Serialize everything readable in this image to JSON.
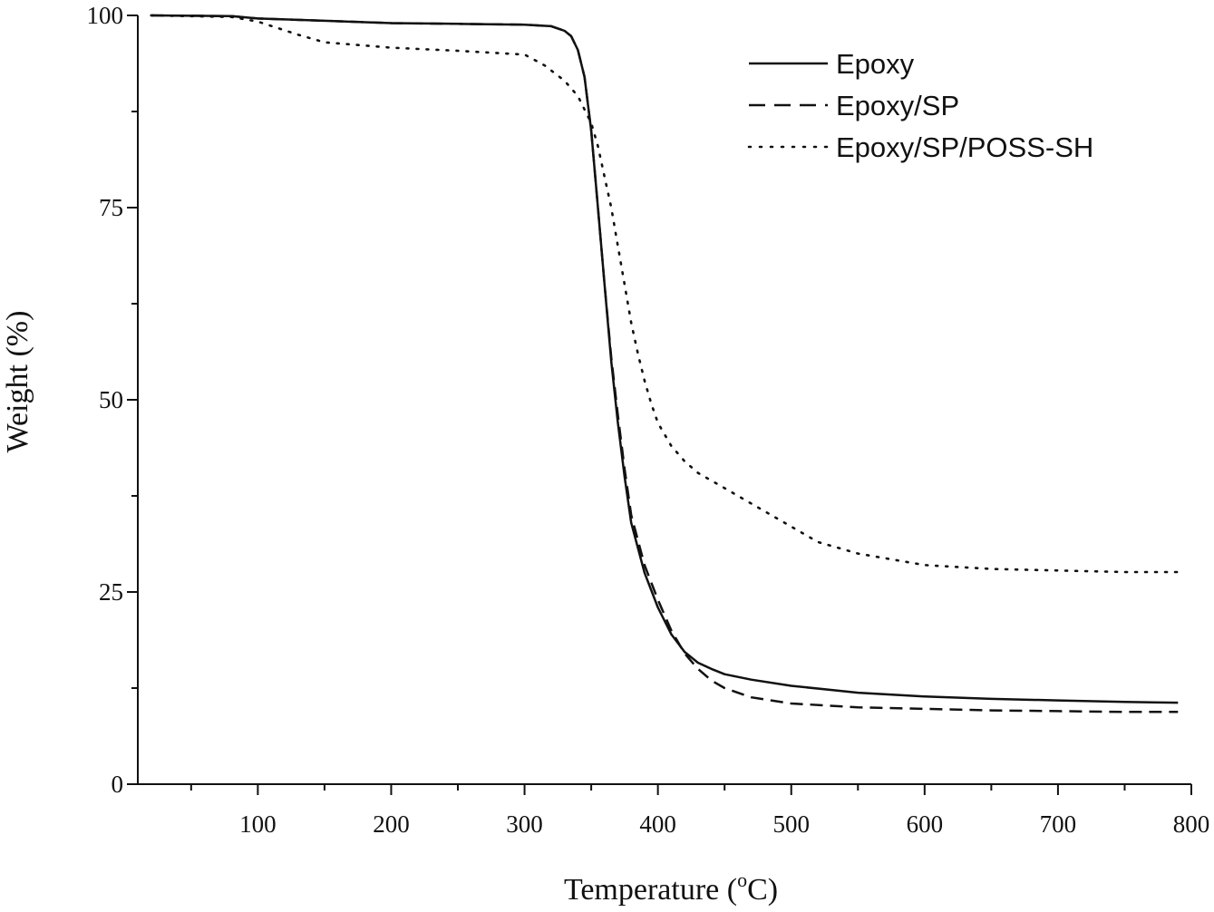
{
  "chart_data": {
    "type": "line",
    "title": "",
    "xlabel": "Temperature (",
    "xlabel_sup": "o",
    "xlabel_tail": "C)",
    "ylabel": "Weight (%)",
    "xlim": [
      10,
      800
    ],
    "ylim": [
      0,
      100
    ],
    "x_ticks": [
      100,
      200,
      300,
      400,
      500,
      600,
      700,
      800
    ],
    "y_ticks": [
      0,
      25,
      50,
      75,
      100
    ],
    "grid": false,
    "legend_position": "top-right",
    "series": [
      {
        "name": "Epoxy",
        "style": "solid",
        "x": [
          20,
          80,
          100,
          150,
          200,
          250,
          300,
          320,
          330,
          335,
          340,
          345,
          350,
          355,
          360,
          365,
          370,
          375,
          380,
          390,
          400,
          410,
          420,
          430,
          440,
          450,
          470,
          500,
          550,
          600,
          650,
          700,
          750,
          790
        ],
        "y": [
          100,
          99.9,
          99.6,
          99.3,
          99.0,
          98.9,
          98.8,
          98.6,
          98.0,
          97.3,
          95.5,
          92,
          85,
          75,
          65,
          55,
          47,
          40,
          34,
          27.5,
          23,
          19.5,
          17.2,
          15.8,
          15.0,
          14.3,
          13.6,
          12.8,
          11.9,
          11.4,
          11.1,
          10.9,
          10.7,
          10.6
        ]
      },
      {
        "name": "Epoxy/SP",
        "style": "dashed",
        "x": [
          20,
          80,
          100,
          150,
          200,
          250,
          300,
          320,
          330,
          335,
          340,
          345,
          350,
          355,
          360,
          365,
          370,
          375,
          380,
          390,
          400,
          410,
          420,
          430,
          440,
          450,
          470,
          500,
          550,
          600,
          650,
          700,
          750,
          790
        ],
        "y": [
          100,
          99.9,
          99.6,
          99.3,
          99.0,
          98.9,
          98.8,
          98.6,
          98.0,
          97.3,
          95.5,
          92,
          85,
          75,
          65,
          55.5,
          48,
          41,
          35,
          28.5,
          24,
          20,
          17,
          15,
          13.5,
          12.5,
          11.3,
          10.5,
          10.0,
          9.8,
          9.6,
          9.5,
          9.4,
          9.4
        ]
      },
      {
        "name": "Epoxy/SP/POSS-SH",
        "style": "dotted",
        "x": [
          20,
          80,
          100,
          130,
          150,
          200,
          250,
          300,
          315,
          330,
          340,
          350,
          355,
          360,
          365,
          370,
          375,
          380,
          385,
          390,
          395,
          400,
          410,
          420,
          430,
          450,
          470,
          500,
          520,
          550,
          600,
          650,
          700,
          750,
          790
        ],
        "y": [
          100,
          99.8,
          99.2,
          97.5,
          96.5,
          95.8,
          95.4,
          94.9,
          93.5,
          91.5,
          89.5,
          86,
          83,
          79,
          75,
          70,
          65,
          60,
          56,
          52.5,
          49.5,
          47,
          44,
          42,
          40.5,
          38.5,
          36.5,
          33.5,
          31.5,
          30,
          28.5,
          28,
          27.8,
          27.6,
          27.6
        ]
      }
    ]
  }
}
